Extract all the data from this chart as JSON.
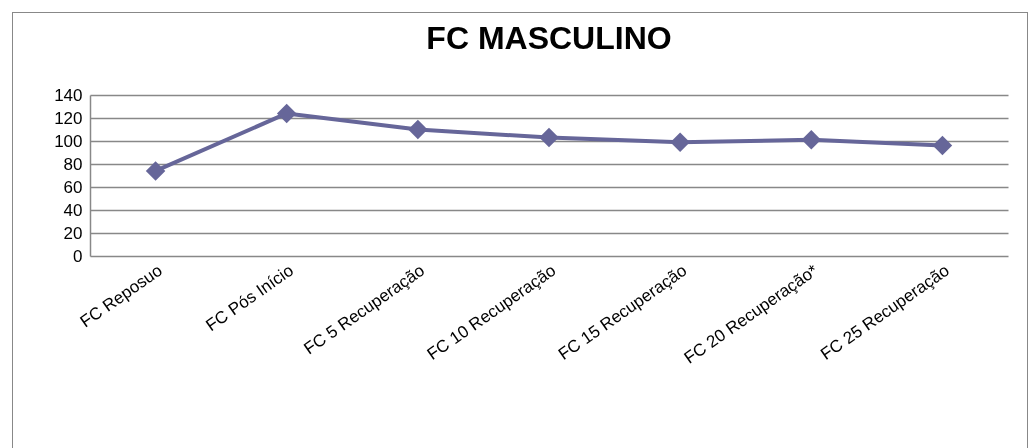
{
  "chart_data": {
    "type": "line",
    "title": "FC MASCULINO",
    "categories": [
      "FC Reposuo",
      "FC Pós Início",
      "FC 5 Recuperação",
      "FC 10 Recuperação",
      "FC 15 Recuperação",
      "FC 20 Recuperação*",
      "FC 25 Recuperação"
    ],
    "series": [
      {
        "color": "#666699",
        "values": [
          74,
          124,
          110,
          103,
          99,
          101,
          96
        ]
      }
    ],
    "ylim": [
      0,
      140
    ],
    "yticks": [
      0,
      20,
      40,
      60,
      80,
      100,
      120,
      140
    ],
    "grid": "y",
    "marker": "diamond",
    "line_style": "solid"
  }
}
